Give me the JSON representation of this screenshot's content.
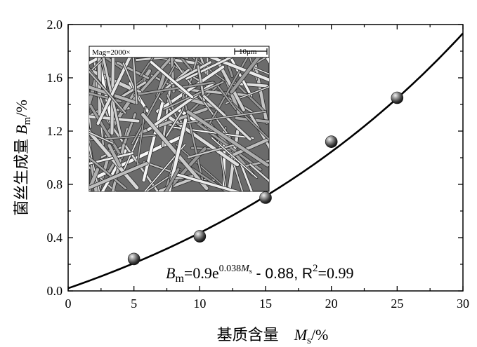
{
  "chart_data": {
    "type": "scatter",
    "xlabel": "基质含量",
    "xlabel_var": "M",
    "xlabel_sub": "s",
    "xlabel_unit": "/%",
    "ylabel": "菌丝生成量",
    "ylabel_var": "B",
    "ylabel_sub": "m",
    "ylabel_unit": "/%",
    "xlim": [
      0,
      30
    ],
    "ylim": [
      0,
      2.0
    ],
    "xticks": [
      0,
      5,
      10,
      15,
      20,
      25,
      30
    ],
    "yticks": [
      0,
      0.4,
      0.8,
      1.2,
      1.6,
      2.0
    ],
    "xtick_labels": [
      "0",
      "5",
      "10",
      "15",
      "20",
      "25",
      "30"
    ],
    "ytick_labels": [
      "0.0",
      "0.4",
      "0.8",
      "1.2",
      "1.6",
      "2.0"
    ],
    "grid": false,
    "points": [
      {
        "x": 5,
        "y": 0.24
      },
      {
        "x": 10,
        "y": 0.41
      },
      {
        "x": 15,
        "y": 0.7
      },
      {
        "x": 20,
        "y": 1.12
      },
      {
        "x": 25,
        "y": 1.45
      }
    ],
    "fit": {
      "a": 0.9,
      "k": 0.038,
      "c": -0.88,
      "x_range": [
        0,
        30
      ]
    },
    "equation": {
      "lhs_var": "B",
      "lhs_sub": "m",
      "eq_coef": "=0.9e",
      "exp_text": "0.038",
      "exp_var": "M",
      "exp_sub": "s",
      "tail": " - 0.88, ",
      "r_label": "R",
      "r_sup": "2",
      "r_value": "=0.99"
    },
    "inset": {
      "mag_label": "Mag=2000×",
      "scale_label": "10μm"
    }
  }
}
